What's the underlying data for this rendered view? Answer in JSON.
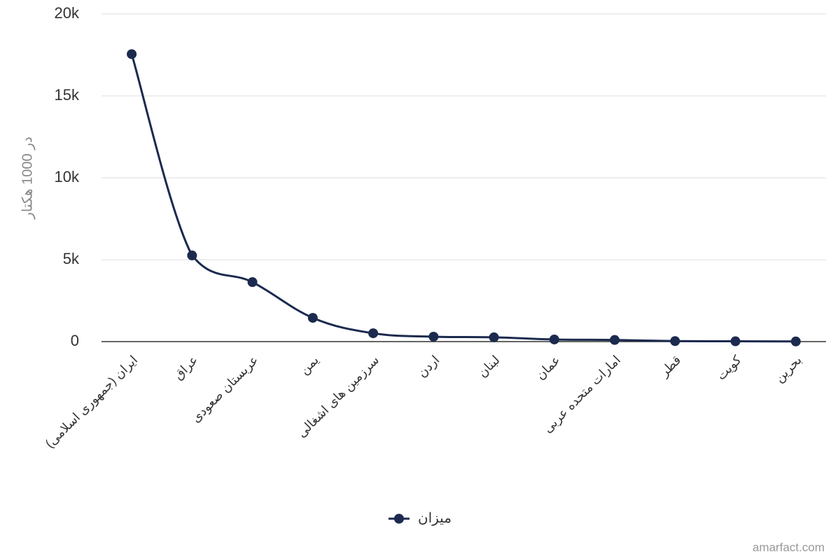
{
  "chart_data": {
    "type": "line",
    "y_label": "در 1000 هکتار",
    "categories": [
      "ایران (جمهوری اسلامی)",
      "عراق",
      "عربستان صعودی",
      "یمن",
      "سرزمین های اشغالی",
      "اردن",
      "لبنان",
      "عمان",
      "امارات متحده عربی",
      "قطر",
      "کویت",
      "بحرین"
    ],
    "series": [
      {
        "name": "میزان",
        "color": "#1b2a4e",
        "values": [
          17550,
          5260,
          3630,
          1450,
          510,
          300,
          260,
          130,
          100,
          30,
          20,
          10
        ]
      }
    ],
    "ylim": [
      0,
      20000
    ],
    "yticks": [
      0,
      {
        "value": 5000,
        "label": "5k"
      },
      {
        "value": 10000,
        "label": "10k"
      },
      {
        "value": 15000,
        "label": "15k"
      },
      {
        "value": 20000,
        "label": "20k"
      }
    ],
    "grid": true,
    "legend": "bottom",
    "source": "amarfact.com"
  }
}
